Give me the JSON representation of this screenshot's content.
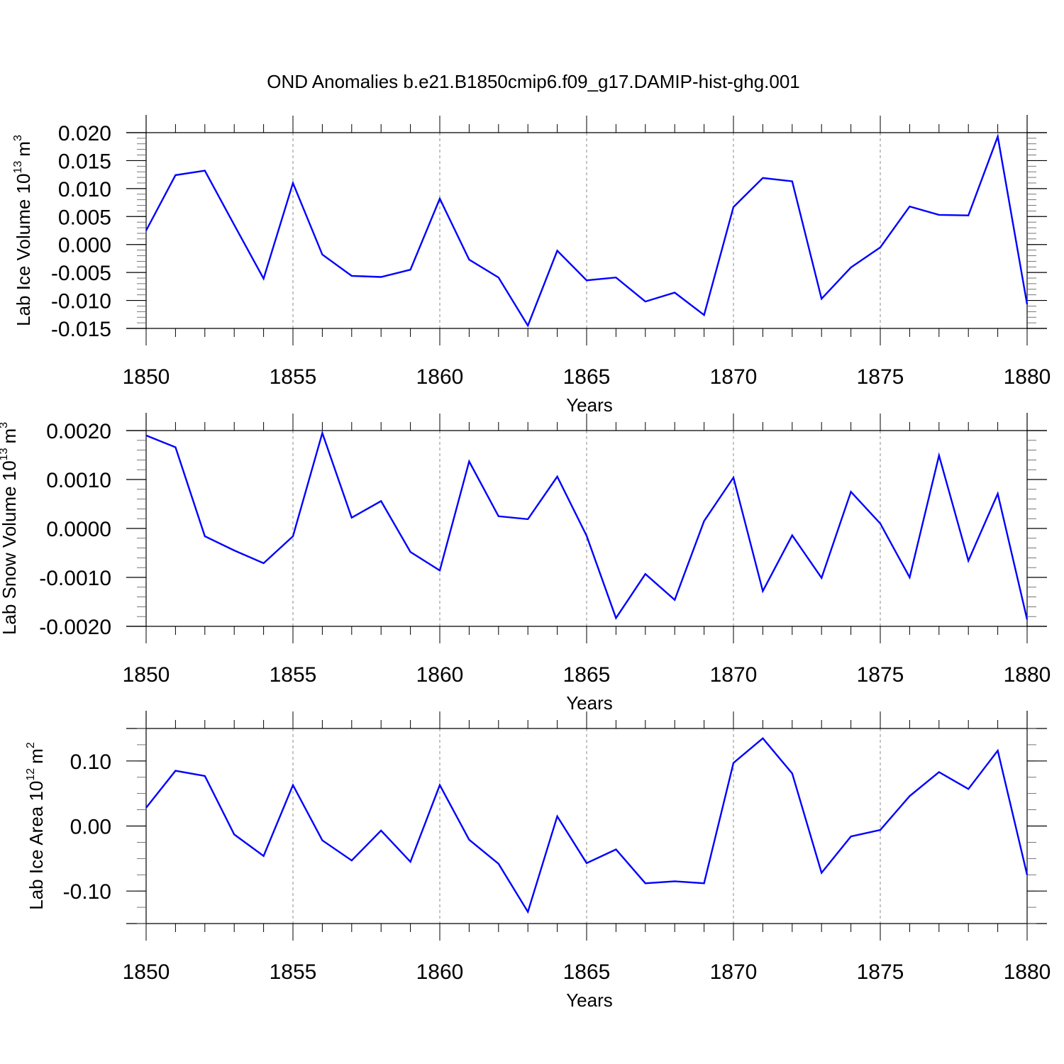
{
  "figure": {
    "title": "OND Anomalies b.e21.B1850cmip6.f09_g17.DAMIP-hist-ghg.001"
  },
  "chart_data": [
    {
      "type": "line",
      "title": "",
      "xlabel": "Years",
      "ylabel": "Lab Ice Volume 10",
      "ylabel_exp": "13",
      "ylabel_unit": "m",
      "ylabel_unit_exp": "3",
      "xlim": [
        1850,
        1880
      ],
      "ylim": [
        -0.015,
        0.02
      ],
      "x_ticks": [
        1850,
        1855,
        1860,
        1865,
        1870,
        1875,
        1880
      ],
      "x_tick_labels": [
        "1850",
        "1855",
        "1860",
        "1865",
        "1870",
        "1875",
        "1880"
      ],
      "y_ticks": [
        -0.015,
        -0.01,
        -0.005,
        0.0,
        0.005,
        0.01,
        0.015,
        0.02
      ],
      "y_tick_labels": [
        "-0.015",
        "-0.010",
        "-0.005",
        "0.000",
        "0.005",
        "0.010",
        "0.015",
        "0.020"
      ],
      "grid": "vertical dashed at major x ticks",
      "legend": "none",
      "line_color": "#0000ff",
      "series": [
        {
          "x": [
            1850,
            1851,
            1852,
            1853,
            1854,
            1855,
            1856,
            1857,
            1858,
            1859,
            1860,
            1861,
            1862,
            1863,
            1864,
            1865,
            1866,
            1867,
            1868,
            1869,
            1870,
            1871,
            1872,
            1873,
            1874,
            1875,
            1876,
            1877,
            1878,
            1879,
            1880
          ],
          "values": [
            0.0025,
            0.0124,
            0.0132,
            0.0035,
            -0.0061,
            0.011,
            -0.0018,
            -0.0056,
            -0.0058,
            -0.0045,
            0.0082,
            -0.0027,
            -0.0059,
            -0.0145,
            -0.0011,
            -0.0064,
            -0.0059,
            -0.0102,
            -0.0086,
            -0.0126,
            0.0067,
            0.0119,
            0.0113,
            -0.0097,
            -0.0041,
            -0.0005,
            0.0068,
            0.0053,
            0.0052,
            0.0193,
            -0.0107
          ]
        }
      ]
    },
    {
      "type": "line",
      "title": "",
      "xlabel": "Years",
      "ylabel": "Lab Snow Volume 10",
      "ylabel_exp": "13",
      "ylabel_unit": "m",
      "ylabel_unit_exp": "3",
      "xlim": [
        1850,
        1880
      ],
      "ylim": [
        -0.002,
        0.002
      ],
      "x_ticks": [
        1850,
        1855,
        1860,
        1865,
        1870,
        1875,
        1880
      ],
      "x_tick_labels": [
        "1850",
        "1855",
        "1860",
        "1865",
        "1870",
        "1875",
        "1880"
      ],
      "y_ticks": [
        -0.002,
        -0.001,
        0.0,
        0.001,
        0.002
      ],
      "y_tick_labels": [
        "-0.0020",
        "-0.0010",
        "0.0000",
        "0.0010",
        "0.0020"
      ],
      "grid": "vertical dashed at major x ticks",
      "legend": "none",
      "line_color": "#0000ff",
      "series": [
        {
          "x": [
            1850,
            1851,
            1852,
            1853,
            1854,
            1855,
            1856,
            1857,
            1858,
            1859,
            1860,
            1861,
            1862,
            1863,
            1864,
            1865,
            1866,
            1867,
            1868,
            1869,
            1870,
            1871,
            1872,
            1873,
            1874,
            1875,
            1876,
            1877,
            1878,
            1879,
            1880
          ],
          "values": [
            0.0019,
            0.00166,
            -0.00016,
            -0.00045,
            -0.00071,
            -0.00016,
            0.00195,
            0.00022,
            0.00056,
            -0.00048,
            -0.00086,
            0.00137,
            0.00025,
            0.00019,
            0.00106,
            -0.00015,
            -0.00183,
            -0.00093,
            -0.00146,
            0.00015,
            0.00104,
            -0.00128,
            -0.00014,
            -0.00101,
            0.00075,
            0.0001,
            -0.001,
            0.00149,
            -0.00066,
            0.00071,
            -0.00186
          ]
        }
      ]
    },
    {
      "type": "line",
      "title": "",
      "xlabel": "Years",
      "ylabel": "Lab Ice Area 10",
      "ylabel_exp": "12",
      "ylabel_unit": "m",
      "ylabel_unit_exp": "2",
      "xlim": [
        1850,
        1880
      ],
      "ylim": [
        -0.15,
        0.15
      ],
      "x_ticks": [
        1850,
        1855,
        1860,
        1865,
        1870,
        1875,
        1880
      ],
      "x_tick_labels": [
        "1850",
        "1855",
        "1860",
        "1865",
        "1870",
        "1875",
        "1880"
      ],
      "y_ticks": [
        -0.1,
        0.0,
        0.1
      ],
      "y_tick_labels": [
        "-0.10",
        "0.00",
        "0.10"
      ],
      "grid": "vertical dashed at major x ticks",
      "legend": "none",
      "line_color": "#0000ff",
      "series": [
        {
          "x": [
            1850,
            1851,
            1852,
            1853,
            1854,
            1855,
            1856,
            1857,
            1858,
            1859,
            1860,
            1861,
            1862,
            1863,
            1864,
            1865,
            1866,
            1867,
            1868,
            1869,
            1870,
            1871,
            1872,
            1873,
            1874,
            1875,
            1876,
            1877,
            1878,
            1879,
            1880
          ],
          "values": [
            0.028,
            0.085,
            0.077,
            -0.013,
            -0.046,
            0.063,
            -0.022,
            -0.053,
            -0.007,
            -0.055,
            0.063,
            -0.021,
            -0.058,
            -0.132,
            0.015,
            -0.057,
            -0.036,
            -0.088,
            -0.085,
            -0.088,
            0.097,
            0.135,
            0.081,
            -0.072,
            -0.016,
            -0.006,
            0.046,
            0.083,
            0.057,
            0.116,
            -0.075
          ]
        }
      ]
    }
  ]
}
